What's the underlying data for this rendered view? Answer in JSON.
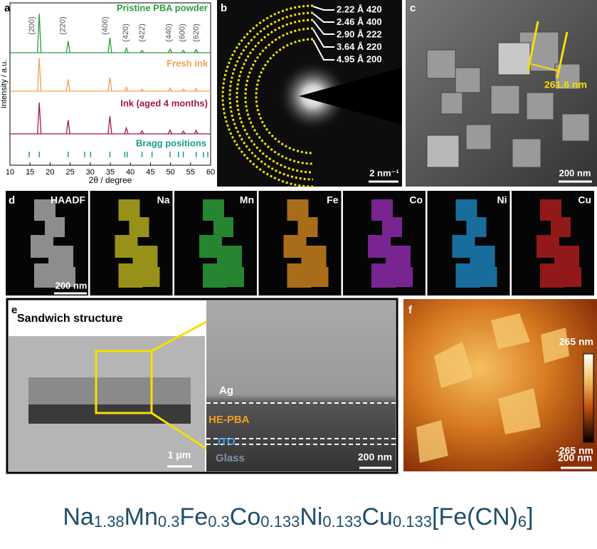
{
  "panel_labels": [
    "a",
    "b",
    "c",
    "d",
    "e",
    "f"
  ],
  "chart_data": {
    "type": "line",
    "xlabel": "2θ / degree",
    "ylabel": "Intensity / a.u.",
    "xlim": [
      10,
      60
    ],
    "xticks": [
      10,
      15,
      20,
      25,
      30,
      35,
      40,
      45,
      50,
      55,
      60
    ],
    "series": [
      {
        "name": "Pristine PBA powder",
        "color": "#2a9d3a",
        "x": [
          17.3,
          24.5,
          34.9,
          39.0,
          42.9,
          49.9,
          53.2,
          56.4
        ],
        "values": [
          100,
          30,
          38,
          12,
          6,
          9,
          6,
          8
        ]
      },
      {
        "name": "Fresh ink",
        "color": "#f0a050",
        "x": [
          17.3,
          24.5,
          34.9,
          39.0,
          42.9,
          49.9,
          53.2,
          56.4
        ],
        "values": [
          85,
          30,
          35,
          10,
          5,
          8,
          5,
          7
        ]
      },
      {
        "name": "Ink (aged 4 months)",
        "color": "#a0174f",
        "x": [
          17.3,
          24.5,
          34.9,
          39.0,
          42.9,
          49.9,
          53.2,
          56.4
        ],
        "values": [
          80,
          35,
          45,
          15,
          8,
          10,
          7,
          9
        ]
      }
    ],
    "bragg": {
      "name": "Bragg positions",
      "color": "#1b9a8f",
      "x": [
        14.8,
        17.3,
        24.5,
        28.6,
        30.1,
        34.9,
        38.6,
        39.2,
        42.9,
        45.4,
        49.9,
        52.0,
        53.2,
        56.4,
        58.2,
        59.3
      ]
    },
    "annotations": [
      {
        "text": "(200)",
        "x": 15.5
      },
      {
        "text": "(220)",
        "x": 23.2
      },
      {
        "text": "(400)",
        "x": 33.8
      },
      {
        "text": "(420)",
        "x": 38.9
      },
      {
        "text": "(422)",
        "x": 43.0
      },
      {
        "text": "(440)",
        "x": 49.6
      },
      {
        "text": "(600)",
        "x": 53.0
      },
      {
        "text": "(620)",
        "x": 56.5
      }
    ]
  },
  "saed": {
    "rings": [
      "2.22 Å 420",
      "2.46 Å 400",
      "2.90 Å 222",
      "3.64 Å 220",
      "4.95 Å 200"
    ],
    "scale_bar": "2 nm⁻¹"
  },
  "sem": {
    "size_label": "261.6 nm",
    "scale_bar": "200 nm"
  },
  "eds": {
    "maps": [
      "HAADF",
      "Na",
      "Mn",
      "Fe",
      "Co",
      "Ni",
      "Cu"
    ],
    "scale_bar": "200 nm"
  },
  "cross_section": {
    "title": "Sandwich structure",
    "scale_bar_left": "1 μm",
    "layers": [
      "Ag",
      "HE-PBA",
      "ITO",
      "Glass"
    ],
    "scale_bar_right": "200 nm"
  },
  "afm": {
    "max": "265 nm",
    "min": "-265 nm",
    "scale_bar": "200 nm"
  },
  "formula": [
    {
      "el": "Na",
      "sub": "1.38"
    },
    {
      "el": "Mn",
      "sub": "0.3"
    },
    {
      "el": "Fe",
      "sub": "0.3"
    },
    {
      "el": "Co",
      "sub": "0.133"
    },
    {
      "el": "Ni",
      "sub": "0.133"
    },
    {
      "el": "Cu",
      "sub": "0.133"
    },
    {
      "el": "[Fe(CN)",
      "sub": "6"
    },
    {
      "el": "]",
      "sub": null
    }
  ]
}
